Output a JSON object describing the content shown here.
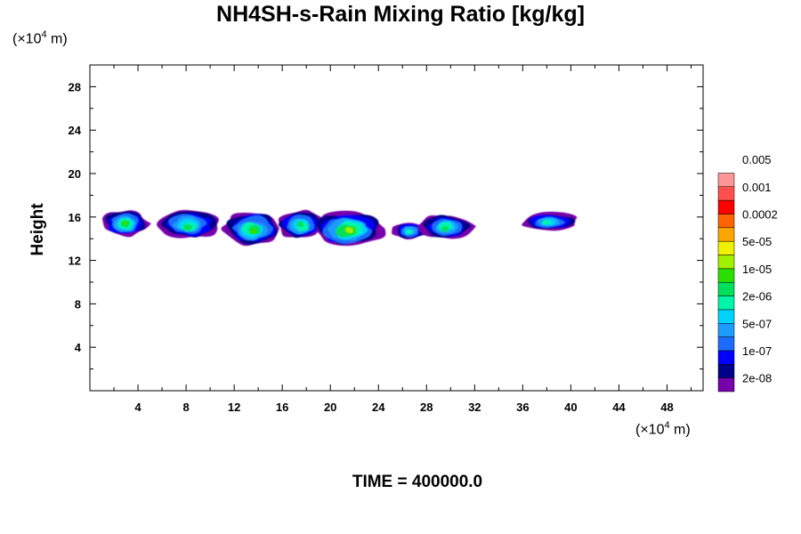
{
  "chart_data": {
    "type": "heatmap",
    "title": "NH4SH-s-Rain Mixing Ratio [kg/kg]",
    "ylabel": "Height",
    "xlabel": "",
    "x_unit_prefix": "(×10",
    "x_unit_exp": "4",
    "x_unit_suffix": " m)",
    "y_unit_prefix": "(×10",
    "y_unit_exp": "4",
    "y_unit_suffix": " m)",
    "xlim": [
      0,
      51
    ],
    "ylim": [
      0,
      30
    ],
    "x_ticks": [
      4,
      8,
      12,
      16,
      20,
      24,
      28,
      32,
      36,
      40,
      44,
      48
    ],
    "y_ticks": [
      4,
      8,
      12,
      16,
      20,
      24,
      28
    ],
    "colorbar": {
      "colors": [
        "#7700aa",
        "#00008b",
        "#0000ff",
        "#1e6cff",
        "#1e9bff",
        "#00d2ff",
        "#00f5aa",
        "#00e05a",
        "#2adf00",
        "#a0f000",
        "#f0f000",
        "#ffa500",
        "#ff6400",
        "#ff0000",
        "#ff5050",
        "#ff9696"
      ],
      "labels": [
        "2e-08",
        "1e-07",
        "5e-07",
        "2e-06",
        "1e-05",
        "5e-05",
        "0.0002",
        "0.001",
        "0.005"
      ]
    },
    "cloud_regions": [
      {
        "x": [
          1.0,
          4.8
        ],
        "y": [
          14.2,
          16.6
        ],
        "peak_level": 8
      },
      {
        "x": [
          5.5,
          11.0
        ],
        "y": [
          14.0,
          16.6
        ],
        "peak_level": 7
      },
      {
        "x": [
          11.0,
          16.0
        ],
        "y": [
          13.4,
          16.5
        ],
        "peak_level": 8
      },
      {
        "x": [
          15.5,
          19.5
        ],
        "y": [
          14.0,
          16.6
        ],
        "peak_level": 7
      },
      {
        "x": [
          18.5,
          24.5
        ],
        "y": [
          13.3,
          16.5
        ],
        "peak_level": 9
      },
      {
        "x": [
          25.2,
          28.0
        ],
        "y": [
          14.0,
          15.5
        ],
        "peak_level": 6
      },
      {
        "x": [
          27.5,
          31.8
        ],
        "y": [
          14.0,
          16.3
        ],
        "peak_level": 7
      },
      {
        "x": [
          35.8,
          40.6
        ],
        "y": [
          14.8,
          16.4
        ],
        "peak_level": 6
      }
    ]
  },
  "time_label": "TIME = 400000.0"
}
